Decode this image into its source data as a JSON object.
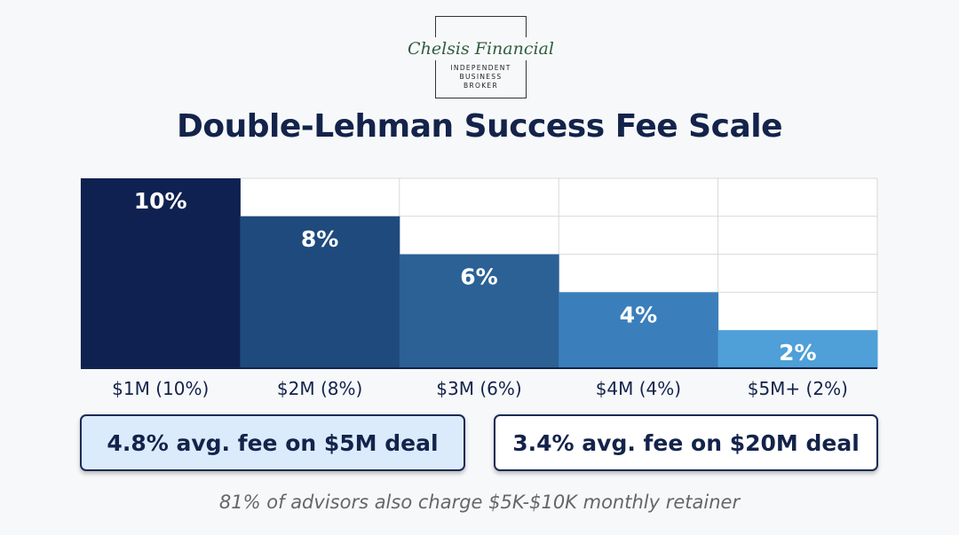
{
  "logo": {
    "name": "Chelsis Financial",
    "tagline": [
      "INDEPENDENT",
      "BUSINESS",
      "BROKER"
    ]
  },
  "chart_data": {
    "type": "bar",
    "title": "Double-Lehman Success Fee Scale",
    "categories": [
      "$1M (10%)",
      "$2M (8%)",
      "$3M (6%)",
      "$4M (4%)",
      "$5M+ (2%)"
    ],
    "values": [
      10,
      8,
      6,
      4,
      2
    ],
    "data_labels": [
      "10%",
      "8%",
      "6%",
      "4%",
      "2%"
    ],
    "ylim": [
      0,
      10
    ],
    "grid": true,
    "colors": [
      "#0f2150",
      "#1f4a7e",
      "#2c6196",
      "#3a7fbb",
      "#4f9fd8"
    ]
  },
  "cards": [
    "4.8% avg. fee on $5M deal",
    "3.4% avg. fee on $20M deal"
  ],
  "footnote": "81% of advisors also charge $5K-$10K monthly retainer"
}
